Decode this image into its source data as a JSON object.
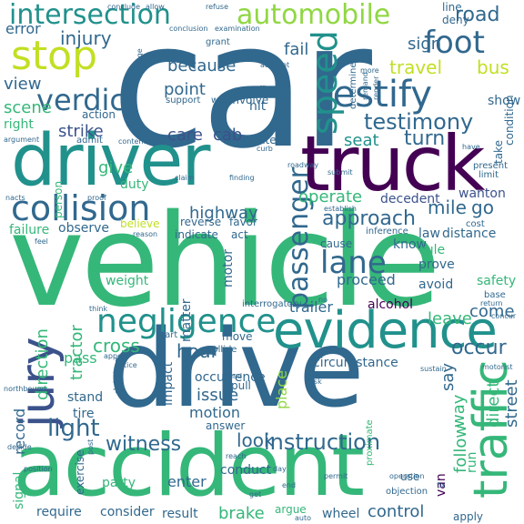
{
  "palette": {
    "purple": "#440154",
    "indigo": "#3b528b",
    "blue": "#31688e",
    "teal": "#21918c",
    "seagreen": "#2a9d8f",
    "green": "#35b779",
    "lime": "#90d743",
    "yellow": "#c2df23",
    "gray": "#9a9aa4"
  },
  "words": [
    {
      "text": "car",
      "color": "#31688e"
    },
    {
      "text": "vehicle",
      "color": "#35b779"
    },
    {
      "text": "drive",
      "color": "#31688e"
    },
    {
      "text": "accident",
      "color": "#35b779"
    },
    {
      "text": "driver",
      "color": "#21918c"
    },
    {
      "text": "truck",
      "color": "#440154"
    },
    {
      "text": "evidence",
      "color": "#21918c"
    },
    {
      "text": "collision",
      "color": "#31688e"
    },
    {
      "text": "negligence",
      "color": "#21918c"
    },
    {
      "text": "intersection",
      "color": "#21918c"
    },
    {
      "text": "automobile",
      "color": "#90d743"
    },
    {
      "text": "stop",
      "color": "#c2df23"
    },
    {
      "text": "verdict",
      "color": "#31688e"
    },
    {
      "text": "testify",
      "color": "#31688e"
    },
    {
      "text": "foot",
      "color": "#31688e"
    },
    {
      "text": "jury",
      "color": "#3b528b"
    },
    {
      "text": "traffic",
      "color": "#35b779"
    },
    {
      "text": "lane",
      "color": "#31688e"
    },
    {
      "text": "testimony",
      "color": "#31688e"
    },
    {
      "text": "speed",
      "color": "#21918c"
    },
    {
      "text": "passenger",
      "color": "#31688e"
    },
    {
      "text": "light",
      "color": "#31688e"
    },
    {
      "text": "instruction",
      "color": "#31688e"
    },
    {
      "text": "witness",
      "color": "#31688e"
    },
    {
      "text": "road",
      "color": "#31688e"
    },
    {
      "text": "injury",
      "color": "#31688e"
    },
    {
      "text": "travel",
      "color": "#c2df23"
    },
    {
      "text": "bus",
      "color": "#c2df23"
    },
    {
      "text": "error",
      "color": "#31688e"
    },
    {
      "text": "view",
      "color": "#31688e"
    },
    {
      "text": "because",
      "color": "#31688e"
    },
    {
      "text": "point",
      "color": "#31688e"
    },
    {
      "text": "fail",
      "color": "#31688e"
    },
    {
      "text": "sign",
      "color": "#31688e"
    },
    {
      "text": "turn",
      "color": "#31688e"
    },
    {
      "text": "seat",
      "color": "#21918c"
    },
    {
      "text": "strike",
      "color": "#3b528b"
    },
    {
      "text": "care",
      "color": "#3b528b"
    },
    {
      "text": "cab",
      "color": "#3b528b"
    },
    {
      "text": "give",
      "color": "#35b779"
    },
    {
      "text": "duty",
      "color": "#35b779"
    },
    {
      "text": "scene",
      "color": "#35b779"
    },
    {
      "text": "right",
      "color": "#35b779"
    },
    {
      "text": "highway",
      "color": "#31688e"
    },
    {
      "text": "approach",
      "color": "#31688e"
    },
    {
      "text": "operate",
      "color": "#35b779"
    },
    {
      "text": "mile",
      "color": "#31688e"
    },
    {
      "text": "go",
      "color": "#31688e"
    },
    {
      "text": "decedent",
      "color": "#3b528b"
    },
    {
      "text": "wanton",
      "color": "#3b528b"
    },
    {
      "text": "hour",
      "color": "#31688e"
    },
    {
      "text": "cross",
      "color": "#35b779"
    },
    {
      "text": "pass",
      "color": "#35b779"
    },
    {
      "text": "motion",
      "color": "#31688e"
    },
    {
      "text": "issue",
      "color": "#31688e"
    },
    {
      "text": "look",
      "color": "#31688e"
    },
    {
      "text": "enter",
      "color": "#31688e"
    },
    {
      "text": "brake",
      "color": "#35b779"
    },
    {
      "text": "control",
      "color": "#31688e"
    },
    {
      "text": "wheel",
      "color": "#31688e"
    },
    {
      "text": "result",
      "color": "#31688e"
    },
    {
      "text": "consider",
      "color": "#31688e"
    },
    {
      "text": "require",
      "color": "#31688e"
    },
    {
      "text": "conduct",
      "color": "#31688e"
    },
    {
      "text": "party",
      "color": "#35b779"
    },
    {
      "text": "trailer",
      "color": "#31688e"
    },
    {
      "text": "tractor",
      "color": "#35b779"
    },
    {
      "text": "direction",
      "color": "#35b779"
    },
    {
      "text": "record",
      "color": "#31688e"
    },
    {
      "text": "signal",
      "color": "#35b779"
    },
    {
      "text": "occur",
      "color": "#31688e"
    },
    {
      "text": "say",
      "color": "#31688e"
    },
    {
      "text": "way",
      "color": "#35b779"
    },
    {
      "text": "follow",
      "color": "#35b779"
    },
    {
      "text": "direct",
      "color": "#35b779"
    },
    {
      "text": "street",
      "color": "#31688e"
    },
    {
      "text": "proceed",
      "color": "#31688e"
    },
    {
      "text": "leave",
      "color": "#35b779"
    },
    {
      "text": "come",
      "color": "#31688e"
    },
    {
      "text": "safety",
      "color": "#35b779"
    },
    {
      "text": "circumstance",
      "color": "#31688e"
    },
    {
      "text": "place",
      "color": "#90d743"
    },
    {
      "text": "impact",
      "color": "#31688e"
    },
    {
      "text": "matter",
      "color": "#31688e"
    },
    {
      "text": "motor",
      "color": "#31688e"
    },
    {
      "text": "weight",
      "color": "#35b779"
    },
    {
      "text": "observe",
      "color": "#31688e"
    },
    {
      "text": "failure",
      "color": "#35b779"
    },
    {
      "text": "alcohol",
      "color": "#440154"
    },
    {
      "text": "know",
      "color": "#31688e"
    },
    {
      "text": "rule",
      "color": "#35b779"
    },
    {
      "text": "law",
      "color": "#31688e"
    },
    {
      "text": "distance",
      "color": "#31688e"
    },
    {
      "text": "avoid",
      "color": "#31688e"
    },
    {
      "text": "prove",
      "color": "#31688e"
    },
    {
      "text": "cause",
      "color": "#31688e"
    },
    {
      "text": "van",
      "color": "#440154"
    },
    {
      "text": "run",
      "color": "#35b779"
    },
    {
      "text": "stand",
      "color": "#31688e"
    },
    {
      "text": "tire",
      "color": "#31688e"
    },
    {
      "text": "occurrence",
      "color": "#31688e"
    },
    {
      "text": "move",
      "color": "#31688e"
    },
    {
      "text": "pull",
      "color": "#31688e"
    },
    {
      "text": "answer",
      "color": "#31688e"
    },
    {
      "text": "exercise",
      "color": "#31688e"
    },
    {
      "text": "argue",
      "color": "#35b779"
    },
    {
      "text": "apply",
      "color": "#31688e"
    },
    {
      "text": "use",
      "color": "#31688e"
    },
    {
      "text": "hit",
      "color": "#31688e"
    },
    {
      "text": "involve",
      "color": "#31688e"
    },
    {
      "text": "contend",
      "color": "#31688e"
    },
    {
      "text": "support",
      "color": "#31688e"
    },
    {
      "text": "west",
      "color": "#31688e"
    },
    {
      "text": "admit",
      "color": "#31688e"
    },
    {
      "text": "action",
      "color": "#31688e"
    },
    {
      "text": "determine",
      "color": "#31688e"
    },
    {
      "text": "show",
      "color": "#31688e"
    },
    {
      "text": "line",
      "color": "#31688e"
    },
    {
      "text": "deny",
      "color": "#31688e"
    },
    {
      "text": "grant",
      "color": "#31688e"
    },
    {
      "text": "condition",
      "color": "#31688e"
    },
    {
      "text": "take",
      "color": "#31688e"
    },
    {
      "text": "reverse",
      "color": "#31688e"
    },
    {
      "text": "favor",
      "color": "#31688e"
    },
    {
      "text": "indicate",
      "color": "#31688e"
    },
    {
      "text": "act",
      "color": "#31688e"
    },
    {
      "text": "believe",
      "color": "#c2df23"
    },
    {
      "text": "person",
      "color": "#35b779"
    },
    {
      "text": "driving",
      "color": "#31688e"
    },
    {
      "text": "proximate",
      "color": "#35b779"
    },
    {
      "text": "present",
      "color": "#31688e"
    },
    {
      "text": "limit",
      "color": "#31688e"
    },
    {
      "text": "cost",
      "color": "#31688e"
    },
    {
      "text": "base",
      "color": "#31688e"
    },
    {
      "text": "return",
      "color": "#31688e"
    },
    {
      "text": "concur",
      "color": "#31688e"
    },
    {
      "text": "interrogatory",
      "color": "#31688e"
    },
    {
      "text": "inference",
      "color": "#31688e"
    },
    {
      "text": "start",
      "color": "#31688e"
    },
    {
      "text": "collide",
      "color": "#31688e"
    },
    {
      "text": "northbound",
      "color": "#31688e"
    },
    {
      "text": "motorist",
      "color": "#31688e"
    },
    {
      "text": "operation",
      "color": "#31688e"
    },
    {
      "text": "objection",
      "color": "#31688e"
    },
    {
      "text": "permit",
      "color": "#31688e"
    },
    {
      "text": "hand",
      "color": "#31688e"
    },
    {
      "text": "reach",
      "color": "#31688e"
    },
    {
      "text": "day",
      "color": "#31688e"
    },
    {
      "text": "sustain",
      "color": "#31688e"
    },
    {
      "text": "attempt",
      "color": "#31688e"
    },
    {
      "text": "finding",
      "color": "#31688e"
    },
    {
      "text": "claim",
      "color": "#31688e"
    },
    {
      "text": "reason",
      "color": "#31688e"
    },
    {
      "text": "conclusion",
      "color": "#31688e"
    },
    {
      "text": "examination",
      "color": "#31688e"
    },
    {
      "text": "conclude",
      "color": "#31688e"
    },
    {
      "text": "allow",
      "color": "#31688e"
    },
    {
      "text": "refuse",
      "color": "#31688e"
    },
    {
      "text": "damage",
      "color": "#31688e"
    },
    {
      "text": "argument",
      "color": "#31688e"
    },
    {
      "text": "contention",
      "color": "#31688e"
    },
    {
      "text": "proof",
      "color": "#31688e"
    },
    {
      "text": "officer",
      "color": "#31688e"
    },
    {
      "text": "curb",
      "color": "#31688e"
    },
    {
      "text": "roadway",
      "color": "#31688e"
    },
    {
      "text": "submit",
      "color": "#31688e"
    },
    {
      "text": "establish",
      "color": "#31688e"
    },
    {
      "text": "have",
      "color": "#31688e"
    },
    {
      "text": "more",
      "color": "#31688e"
    },
    {
      "text": "remand",
      "color": "#31688e"
    },
    {
      "text": "render",
      "color": "#31688e"
    },
    {
      "text": "decide",
      "color": "#31688e"
    },
    {
      "text": "position",
      "color": "#31688e"
    },
    {
      "text": "post",
      "color": "#31688e"
    },
    {
      "text": "end",
      "color": "#31688e"
    },
    {
      "text": "get",
      "color": "#31688e"
    },
    {
      "text": "auto",
      "color": "#31688e"
    },
    {
      "text": "fix",
      "color": "#31688e"
    },
    {
      "text": "no",
      "color": "#31688e"
    },
    {
      "text": "think",
      "color": "#31688e"
    },
    {
      "text": "appear",
      "color": "#31688e"
    },
    {
      "text": "notice",
      "color": "#31688e"
    },
    {
      "text": "feel",
      "color": "#31688e"
    },
    {
      "text": "ask",
      "color": "#31688e"
    },
    {
      "text": "nacts",
      "color": "#31688e"
    }
  ]
}
